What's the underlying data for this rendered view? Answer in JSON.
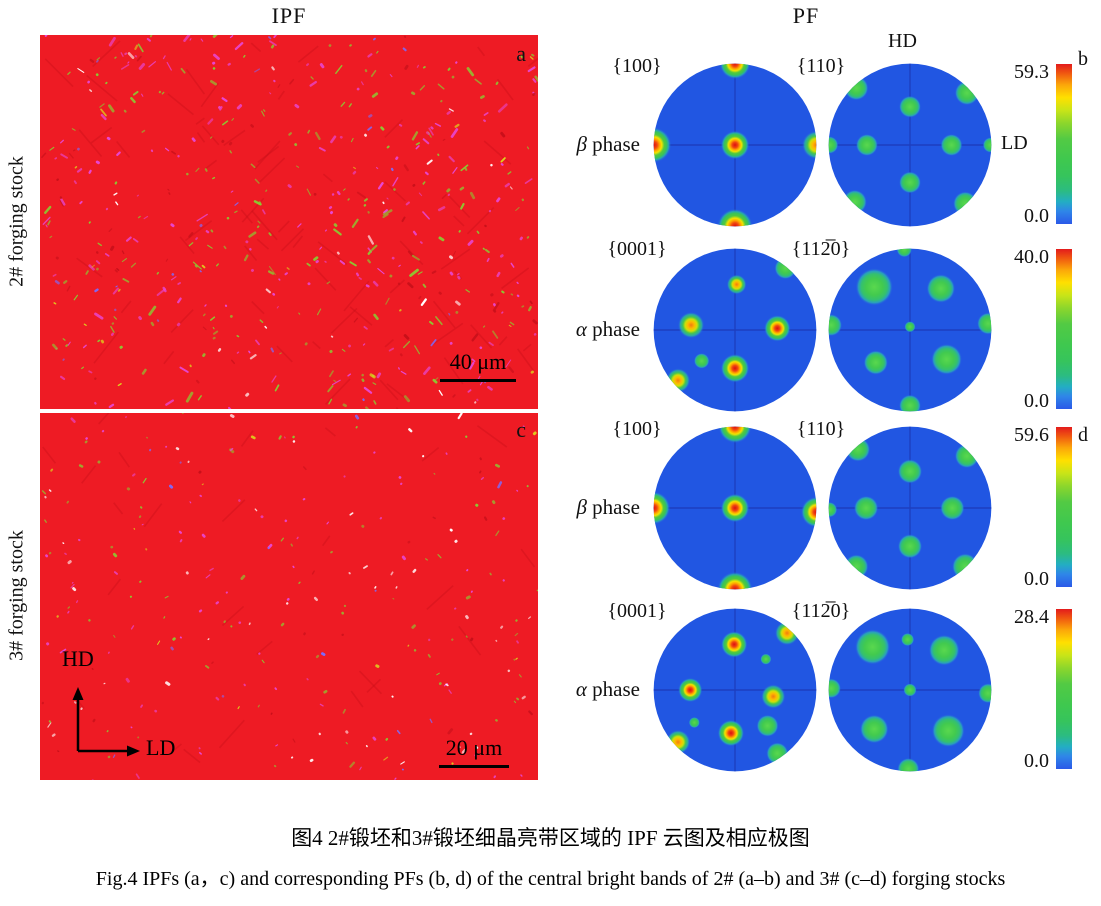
{
  "headers": {
    "ipf": "IPF",
    "pf": "PF"
  },
  "micrographs": {
    "a": {
      "row_label": "2# forging stock",
      "panel_letter": "a",
      "scale_bar": "40 μm"
    },
    "c": {
      "row_label": "3# forging stock",
      "panel_letter": "c",
      "scale_bar": "20 μm",
      "axis_vertical": "HD",
      "axis_horizontal": "LD"
    }
  },
  "pole_rows": [
    {
      "phase_symbol": "β",
      "phase_word": " phase",
      "plane_left": "{100}",
      "plane_right": "{110}",
      "scale_max": "59.3",
      "scale_min": "0.0",
      "panel_letter": "b",
      "axis_top": "HD",
      "axis_right": "LD",
      "figures": {
        "left": {
          "spots": [
            [
              0,
              0,
              0.13,
              "hot"
            ],
            [
              0,
              -1,
              0.14,
              "hot"
            ],
            [
              0,
              1,
              0.16,
              "hot"
            ],
            [
              -1,
              0,
              0.16,
              "hot"
            ],
            [
              1,
              0,
              0.13,
              "warm"
            ]
          ]
        },
        "right": {
          "spots": [
            [
              0,
              -0.47,
              0.1,
              "green"
            ],
            [
              0,
              0.46,
              0.1,
              "green"
            ],
            [
              -0.53,
              0,
              0.1,
              "green"
            ],
            [
              0.51,
              0,
              0.1,
              "green"
            ],
            [
              -0.66,
              -0.7,
              0.11,
              "green"
            ],
            [
              0.7,
              -0.64,
              0.11,
              "green"
            ],
            [
              -0.68,
              0.7,
              0.11,
              "green"
            ],
            [
              0.68,
              0.72,
              0.11,
              "green"
            ],
            [
              -0.99,
              0,
              0.08,
              "green"
            ],
            [
              0.99,
              0,
              0.07,
              "green"
            ]
          ]
        }
      }
    },
    {
      "phase_symbol": "α",
      "phase_word": " phase",
      "plane_left": "{0001}",
      "plane_right": "{112̅0}",
      "scale_max": "40.0",
      "scale_min": "0.0",
      "figures": {
        "left": {
          "spots": [
            [
              0.02,
              -0.56,
              0.09,
              "warm"
            ],
            [
              -0.54,
              -0.06,
              0.12,
              "warm"
            ],
            [
              0.52,
              -0.02,
              0.12,
              "hot"
            ],
            [
              0,
              0.47,
              0.13,
              "hot"
            ],
            [
              -0.41,
              0.38,
              0.07,
              "green"
            ],
            [
              -0.7,
              0.62,
              0.11,
              "warm"
            ],
            [
              0.62,
              -0.76,
              0.1,
              "green"
            ]
          ]
        },
        "right": {
          "spots": [
            [
              -0.44,
              -0.53,
              0.17,
              "green"
            ],
            [
              0.38,
              -0.51,
              0.13,
              "green"
            ],
            [
              0,
              -0.04,
              0.05,
              "green"
            ],
            [
              -0.42,
              0.4,
              0.11,
              "green"
            ],
            [
              0.45,
              0.36,
              0.14,
              "green"
            ],
            [
              -0.97,
              -0.06,
              0.1,
              "green"
            ],
            [
              0.96,
              -0.08,
              0.1,
              "green"
            ],
            [
              -0.07,
              -0.99,
              0.07,
              "green"
            ],
            [
              0,
              0.93,
              0.1,
              "green"
            ]
          ]
        }
      }
    },
    {
      "phase_symbol": "β",
      "phase_word": " phase",
      "plane_left": "{100}",
      "plane_right": "{110}",
      "scale_max": "59.6",
      "scale_min": "0.0",
      "panel_letter": "d",
      "figures": {
        "left": {
          "spots": [
            [
              0,
              0,
              0.13,
              "hot"
            ],
            [
              0,
              -1,
              0.15,
              "hot"
            ],
            [
              0,
              1,
              0.16,
              "hot"
            ],
            [
              -1,
              0,
              0.15,
              "hot"
            ],
            [
              1,
              0.05,
              0.14,
              "hot"
            ]
          ]
        },
        "right": {
          "spots": [
            [
              0,
              -0.45,
              0.11,
              "green"
            ],
            [
              0,
              0.47,
              0.11,
              "green"
            ],
            [
              -0.54,
              0,
              0.11,
              "green"
            ],
            [
              0.52,
              0,
              0.11,
              "green"
            ],
            [
              -0.64,
              -0.72,
              0.11,
              "green"
            ],
            [
              0.7,
              -0.64,
              0.11,
              "green"
            ],
            [
              -0.66,
              0.72,
              0.11,
              "green"
            ],
            [
              0.68,
              0.72,
              0.12,
              "green"
            ],
            [
              -0.99,
              0.02,
              0.07,
              "green"
            ]
          ]
        }
      }
    },
    {
      "phase_symbol": "α",
      "phase_word": " phase",
      "plane_left": "{0001}",
      "plane_right": "{112̅0}",
      "scale_max": "28.4",
      "scale_min": "0.0",
      "figures": {
        "left": {
          "spots": [
            [
              -0.01,
              -0.56,
              0.12,
              "hot"
            ],
            [
              0.64,
              -0.7,
              0.11,
              "warm"
            ],
            [
              0.38,
              -0.38,
              0.05,
              "green"
            ],
            [
              -0.55,
              0,
              0.11,
              "hot"
            ],
            [
              0.47,
              0.08,
              0.11,
              "warm"
            ],
            [
              0.4,
              0.44,
              0.1,
              "green"
            ],
            [
              -0.05,
              0.53,
              0.12,
              "hot"
            ],
            [
              -0.5,
              0.4,
              0.05,
              "green"
            ],
            [
              -0.7,
              0.64,
              0.11,
              "warm"
            ],
            [
              0.52,
              0.78,
              0.1,
              "green"
            ]
          ]
        },
        "right": {
          "spots": [
            [
              -0.46,
              -0.53,
              0.16,
              "green"
            ],
            [
              -0.03,
              -0.62,
              0.06,
              "green"
            ],
            [
              0.42,
              -0.49,
              0.14,
              "green"
            ],
            [
              0,
              0,
              0.06,
              "green"
            ],
            [
              -0.44,
              0.48,
              0.13,
              "green"
            ],
            [
              0.47,
              0.5,
              0.15,
              "green"
            ],
            [
              -0.97,
              -0.02,
              0.09,
              "green"
            ],
            [
              0.96,
              0.04,
              0.09,
              "green"
            ],
            [
              -0.02,
              0.97,
              0.1,
              "green"
            ]
          ]
        }
      }
    }
  ],
  "colors": {
    "pf_background": "#2156e2",
    "pf_crosshair": "#1d3fc0",
    "colorbar_top": "#e31b1c",
    "colorbar_bottom": "#2b59e8",
    "micro": {
      "bg": "#ee1b24",
      "green": "#8cc832",
      "magenta": "#e748d8",
      "white": "#ffffff",
      "blue": "#7a6cff",
      "yellow": "#ddd61e",
      "dark": "#c8101a"
    }
  },
  "captions": {
    "zh": "图4  2#锻坯和3#锻坯细晶亮带区域的 IPF 云图及相应极图",
    "en": "Fig.4  IPFs (a，c) and corresponding PFs (b, d) of the central bright bands of 2# (a–b) and 3# (c–d) forging stocks"
  }
}
